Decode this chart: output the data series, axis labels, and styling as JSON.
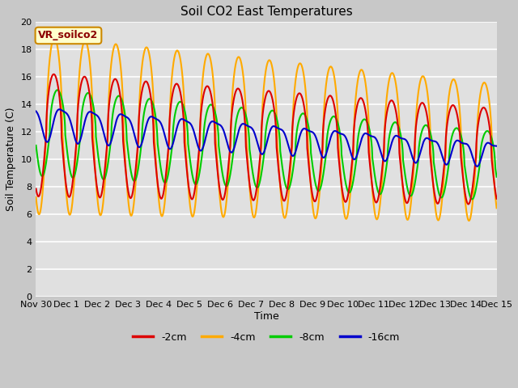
{
  "title": "Soil CO2 East Temperatures",
  "xlabel": "Time",
  "ylabel": "Soil Temperature (C)",
  "annotation": "VR_soilco2",
  "ylim": [
    0,
    20
  ],
  "yticks": [
    0,
    2,
    4,
    6,
    8,
    10,
    12,
    14,
    16,
    18,
    20
  ],
  "colors": {
    "-2cm": "#dd0000",
    "-4cm": "#ffaa00",
    "-8cm": "#00cc00",
    "-16cm": "#0000cc"
  },
  "line_width": 1.5,
  "fig_bg": "#c8c8c8",
  "plot_bg": "#e0e0e0",
  "legend_labels": [
    "-2cm",
    "-4cm",
    "-8cm",
    "-16cm"
  ],
  "xtick_labels": [
    "Nov 30",
    "Dec 1",
    "Dec 2",
    "Dec 3",
    "Dec 4",
    "Dec 5",
    "Dec 6",
    "Dec 7",
    "Dec 8",
    "Dec 9",
    "Dec 10",
    "Dec 11",
    "Dec 12",
    "Dec 13",
    "Dec 14",
    "Dec 15"
  ]
}
